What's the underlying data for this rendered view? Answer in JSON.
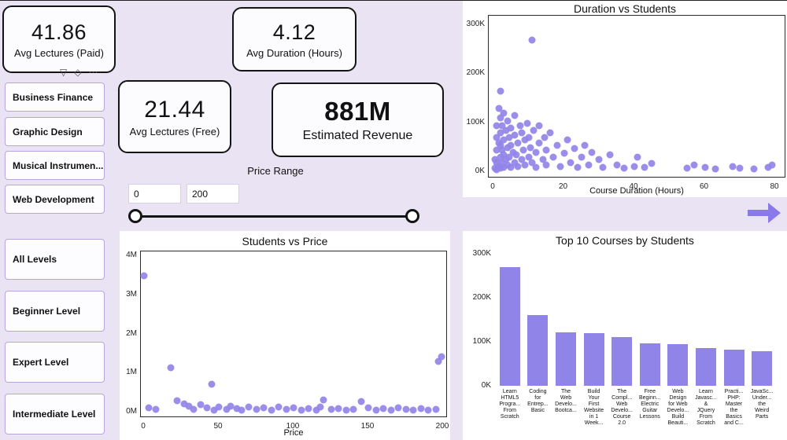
{
  "theme": {
    "bg": "#eae3f4",
    "accent": "#9184e8",
    "card_bg": "#fcfbfe"
  },
  "kpis": [
    {
      "value": "41.86",
      "label": "Avg Lectures (Paid)"
    },
    {
      "value": "4.12",
      "label": "Avg Duration (Hours)"
    },
    {
      "value": "21.44",
      "label": "Avg Lectures (Free)"
    },
    {
      "value": "881M",
      "label": "Estimated Revenue"
    }
  ],
  "icons": {
    "filter_glyph": "▽",
    "eraser_glyph": "◇",
    "more_glyph": "⋯"
  },
  "subjects": {
    "items": [
      {
        "label": "Business Finance"
      },
      {
        "label": "Graphic Design"
      },
      {
        "label": "Musical Instrumen..."
      },
      {
        "label": "Web Development"
      }
    ]
  },
  "levels": {
    "items": [
      {
        "label": "All Levels"
      },
      {
        "label": "Beginner Level"
      },
      {
        "label": "Expert Level"
      },
      {
        "label": "Intermediate Level"
      }
    ]
  },
  "price_range": {
    "label": "Price Range",
    "min_value": "0",
    "max_value": "200"
  },
  "chart_data": [
    {
      "type": "scatter",
      "title": "Duration vs Students",
      "xlabel": "Course Duration (Hours)",
      "ylabel": "",
      "xlim": [
        0,
        80
      ],
      "ylim": [
        0,
        300000
      ],
      "color": "#9184e8",
      "xticks": [
        {
          "v": 0,
          "l": "0"
        },
        {
          "v": 20,
          "l": "20"
        },
        {
          "v": 40,
          "l": "40"
        },
        {
          "v": 60,
          "l": "60"
        },
        {
          "v": 80,
          "l": "80"
        }
      ],
      "yticks": [
        {
          "v": 0,
          "l": "0K"
        },
        {
          "v": 100000,
          "l": "100K"
        },
        {
          "v": 200000,
          "l": "200K"
        },
        {
          "v": 300000,
          "l": "300K"
        }
      ],
      "points": [
        [
          0.5,
          8000
        ],
        [
          0.5,
          25000
        ],
        [
          1,
          5000
        ],
        [
          1,
          20000
        ],
        [
          1,
          45000
        ],
        [
          1,
          70000
        ],
        [
          1,
          95000
        ],
        [
          1.5,
          12000
        ],
        [
          1.5,
          60000
        ],
        [
          1.5,
          130000
        ],
        [
          2,
          8000
        ],
        [
          2,
          30000
        ],
        [
          2,
          55000
        ],
        [
          2,
          80000
        ],
        [
          2,
          110000
        ],
        [
          2,
          165000
        ],
        [
          2.5,
          20000
        ],
        [
          2.5,
          45000
        ],
        [
          2.5,
          95000
        ],
        [
          3,
          10000
        ],
        [
          3,
          35000
        ],
        [
          3,
          65000
        ],
        [
          3,
          120000
        ],
        [
          3.5,
          25000
        ],
        [
          3.5,
          85000
        ],
        [
          4,
          15000
        ],
        [
          4,
          50000
        ],
        [
          4,
          105000
        ],
        [
          4.5,
          30000
        ],
        [
          4.5,
          70000
        ],
        [
          5,
          10000
        ],
        [
          5,
          55000
        ],
        [
          5,
          90000
        ],
        [
          5.5,
          40000
        ],
        [
          6,
          20000
        ],
        [
          6,
          75000
        ],
        [
          6,
          115000
        ],
        [
          6.5,
          35000
        ],
        [
          7,
          12000
        ],
        [
          7,
          60000
        ],
        [
          7.5,
          95000
        ],
        [
          8,
          25000
        ],
        [
          8,
          80000
        ],
        [
          8.5,
          45000
        ],
        [
          9,
          15000
        ],
        [
          9,
          65000
        ],
        [
          9.5,
          100000
        ],
        [
          10,
          30000
        ],
        [
          10,
          70000
        ],
        [
          10.5,
          50000
        ],
        [
          11,
          270000
        ],
        [
          11,
          20000
        ],
        [
          11.5,
          85000
        ],
        [
          12,
          40000
        ],
        [
          12,
          10000
        ],
        [
          13,
          60000
        ],
        [
          13,
          95000
        ],
        [
          14,
          25000
        ],
        [
          14.5,
          70000
        ],
        [
          15,
          15000
        ],
        [
          15,
          45000
        ],
        [
          16,
          80000
        ],
        [
          17,
          30000
        ],
        [
          18,
          55000
        ],
        [
          19,
          12000
        ],
        [
          20,
          38000
        ],
        [
          21,
          65000
        ],
        [
          22,
          20000
        ],
        [
          23,
          48000
        ],
        [
          24,
          10000
        ],
        [
          25,
          30000
        ],
        [
          26,
          55000
        ],
        [
          27,
          15000
        ],
        [
          28,
          40000
        ],
        [
          30,
          25000
        ],
        [
          31,
          10000
        ],
        [
          33,
          35000
        ],
        [
          35,
          15000
        ],
        [
          37,
          8000
        ],
        [
          40,
          12000
        ],
        [
          41,
          30000
        ],
        [
          43,
          10000
        ],
        [
          45,
          18000
        ],
        [
          55,
          8000
        ],
        [
          57,
          15000
        ],
        [
          60,
          10000
        ],
        [
          63,
          6000
        ],
        [
          68,
          12000
        ],
        [
          70,
          8000
        ],
        [
          74,
          6000
        ],
        [
          78,
          10000
        ],
        [
          79,
          15000
        ]
      ]
    },
    {
      "type": "scatter",
      "title": "Students vs Price",
      "xlabel": "Price",
      "ylabel": "",
      "xlim": [
        0,
        200
      ],
      "ylim": [
        0,
        4000000
      ],
      "color": "#9184e8",
      "xticks": [
        {
          "v": 0,
          "l": "0"
        },
        {
          "v": 50,
          "l": "50"
        },
        {
          "v": 100,
          "l": "100"
        },
        {
          "v": 150,
          "l": "150"
        },
        {
          "v": 200,
          "l": "200"
        }
      ],
      "yticks": [
        {
          "v": 0,
          "l": "0M"
        },
        {
          "v": 1000000,
          "l": "1M"
        },
        {
          "v": 2000000,
          "l": "2M"
        },
        {
          "v": 3000000,
          "l": "3M"
        },
        {
          "v": 4000000,
          "l": "4M"
        }
      ],
      "points": [
        [
          0,
          3500000
        ],
        [
          3,
          120000
        ],
        [
          8,
          80000
        ],
        [
          18,
          1150000
        ],
        [
          22,
          300000
        ],
        [
          27,
          230000
        ],
        [
          30,
          160000
        ],
        [
          33,
          90000
        ],
        [
          38,
          200000
        ],
        [
          42,
          120000
        ],
        [
          45,
          730000
        ],
        [
          47,
          60000
        ],
        [
          50,
          150000
        ],
        [
          55,
          90000
        ],
        [
          58,
          170000
        ],
        [
          62,
          110000
        ],
        [
          65,
          60000
        ],
        [
          70,
          140000
        ],
        [
          75,
          80000
        ],
        [
          80,
          120000
        ],
        [
          85,
          60000
        ],
        [
          90,
          150000
        ],
        [
          95,
          90000
        ],
        [
          100,
          120000
        ],
        [
          105,
          70000
        ],
        [
          110,
          100000
        ],
        [
          115,
          60000
        ],
        [
          118,
          140000
        ],
        [
          120,
          330000
        ],
        [
          125,
          80000
        ],
        [
          130,
          110000
        ],
        [
          135,
          60000
        ],
        [
          140,
          90000
        ],
        [
          145,
          280000
        ],
        [
          150,
          120000
        ],
        [
          155,
          70000
        ],
        [
          160,
          100000
        ],
        [
          165,
          60000
        ],
        [
          170,
          130000
        ],
        [
          175,
          80000
        ],
        [
          180,
          60000
        ],
        [
          185,
          110000
        ],
        [
          190,
          70000
        ],
        [
          195,
          90000
        ],
        [
          197,
          1300000
        ],
        [
          199,
          1420000
        ]
      ]
    },
    {
      "type": "bar",
      "title": "Top 10 Courses by Students",
      "xlabel": "",
      "ylabel": "",
      "ylim": [
        0,
        300000
      ],
      "color": "#9184e8",
      "yticks": [
        {
          "v": 0,
          "l": "0K"
        },
        {
          "v": 100000,
          "l": "100K"
        },
        {
          "v": 200000,
          "l": "200K"
        },
        {
          "v": 300000,
          "l": "300K"
        }
      ],
      "categories": [
        "Learn\nHTML5\nProgra...\nFrom\nScratch",
        "Coding\nfor\nEntrep...\nBasic",
        "The\nWeb\nDevelo...\nBootca...",
        "Build\nYour\nFirst\nWebsite\nin 1\nWeek...",
        "The\nCompl...\nWeb\nDevelo...\nCourse\n2.0",
        "Free\nBeginn...\nElectric\nGuitar\nLessons",
        "Web\nDesign\nfor Web\nDevelo...\nBuild\nBeauti...",
        "Learn\nJavasc...\n&\nJQuery\nFrom\nScratch",
        "Practi...\nPHP:\nMaster\nthe\nBasics\nand C...",
        "JavaSc...\nUnder...\nthe\nWeird\nParts"
      ],
      "values": [
        270000,
        160000,
        122000,
        120000,
        110000,
        97000,
        95000,
        85000,
        82000,
        78000
      ]
    }
  ]
}
